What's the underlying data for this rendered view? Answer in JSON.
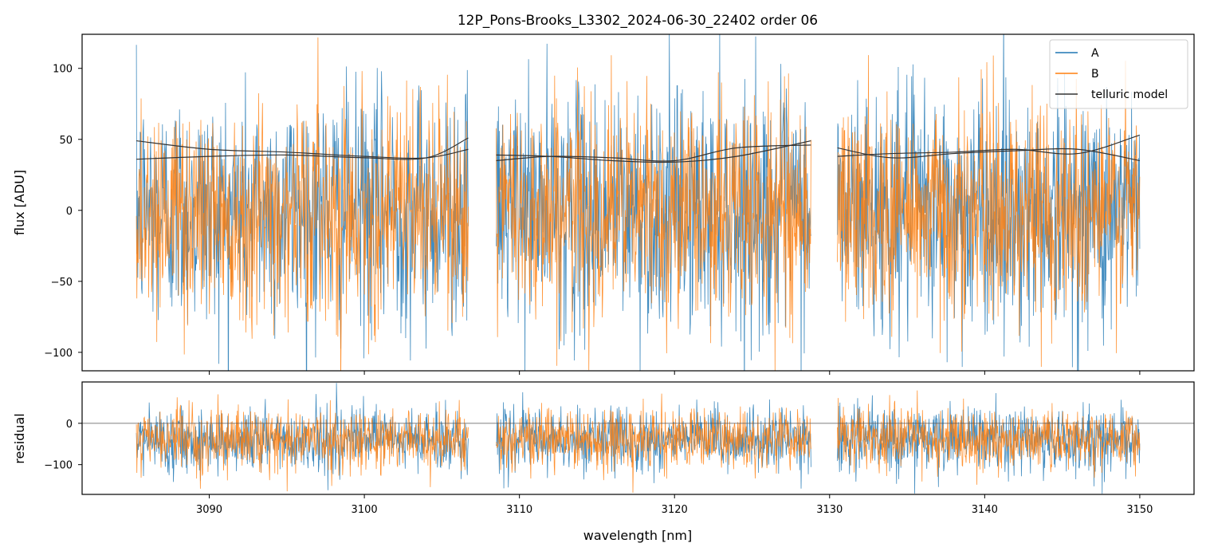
{
  "title": "12P_Pons-Brooks_L3302_2024-06-30_22402  order 06",
  "colors": {
    "A": "#1f77b4",
    "B": "#ff7f0e",
    "model": "#333333",
    "zero": "#555555"
  },
  "chart_data": [
    {
      "type": "line",
      "panel": "main",
      "ylabel": "flux [ADU]",
      "xlim": [
        3081.8,
        3153.5
      ],
      "ylim": [
        -113,
        124
      ],
      "yticks": [
        -100,
        -50,
        0,
        50,
        100
      ],
      "ytick_labels": [
        "−100",
        "−50",
        "0",
        "50",
        "100"
      ],
      "xticks": [
        3090,
        3100,
        3110,
        3120,
        3130,
        3140,
        3150
      ],
      "segments": [
        [
          3085.3,
          3106.7
        ],
        [
          3108.5,
          3128.8
        ],
        [
          3130.5,
          3150.0
        ]
      ],
      "series": [
        {
          "name": "A",
          "noise_sd": 42,
          "mean": 0
        },
        {
          "name": "B",
          "noise_sd": 38,
          "mean": 0
        },
        {
          "name": "telluric model",
          "curves": [
            {
              "x": [
                3085.3,
                3090,
                3095,
                3100,
                3104,
                3106.7
              ],
              "y": [
                49,
                43,
                41,
                38,
                37,
                43
              ]
            },
            {
              "x": [
                3085.3,
                3090,
                3095,
                3100,
                3104,
                3106.7
              ],
              "y": [
                36,
                38,
                39,
                37,
                37,
                51
              ]
            },
            {
              "x": [
                3108.5,
                3112,
                3116,
                3120,
                3124,
                3128.8
              ],
              "y": [
                39,
                38,
                35,
                34,
                38,
                49
              ]
            },
            {
              "x": [
                3108.5,
                3112,
                3116,
                3120,
                3124,
                3128.8
              ],
              "y": [
                35,
                38,
                37,
                35,
                44,
                46
              ]
            },
            {
              "x": [
                3130.5,
                3134,
                3138,
                3142,
                3146,
                3150.0
              ],
              "y": [
                44,
                37,
                40,
                42,
                43,
                35
              ]
            },
            {
              "x": [
                3130.5,
                3134,
                3138,
                3142,
                3146,
                3150.0
              ],
              "y": [
                38,
                40,
                41,
                43,
                40,
                53
              ]
            }
          ]
        }
      ],
      "legend": {
        "placement": "top-right",
        "entries": [
          "A",
          "B",
          "telluric model"
        ]
      }
    },
    {
      "type": "line",
      "panel": "residual",
      "ylabel": "residual",
      "xlabel": "wavelength [nm]",
      "xlim": [
        3081.8,
        3153.5
      ],
      "ylim": [
        -172,
        100
      ],
      "yticks": [
        -100,
        0
      ],
      "ytick_labels": [
        "−100",
        "0"
      ],
      "xticks": [
        3090,
        3100,
        3110,
        3120,
        3130,
        3140,
        3150
      ],
      "xtick_labels": [
        "3090",
        "3100",
        "3110",
        "3120",
        "3130",
        "3140",
        "3150"
      ],
      "segments": [
        [
          3085.3,
          3106.7
        ],
        [
          3108.5,
          3128.8
        ],
        [
          3130.5,
          3150.0
        ]
      ],
      "zero_line": 0,
      "series": [
        {
          "name": "A",
          "noise_sd": 38,
          "mean": -40
        },
        {
          "name": "B",
          "noise_sd": 36,
          "mean": -38
        }
      ]
    }
  ]
}
